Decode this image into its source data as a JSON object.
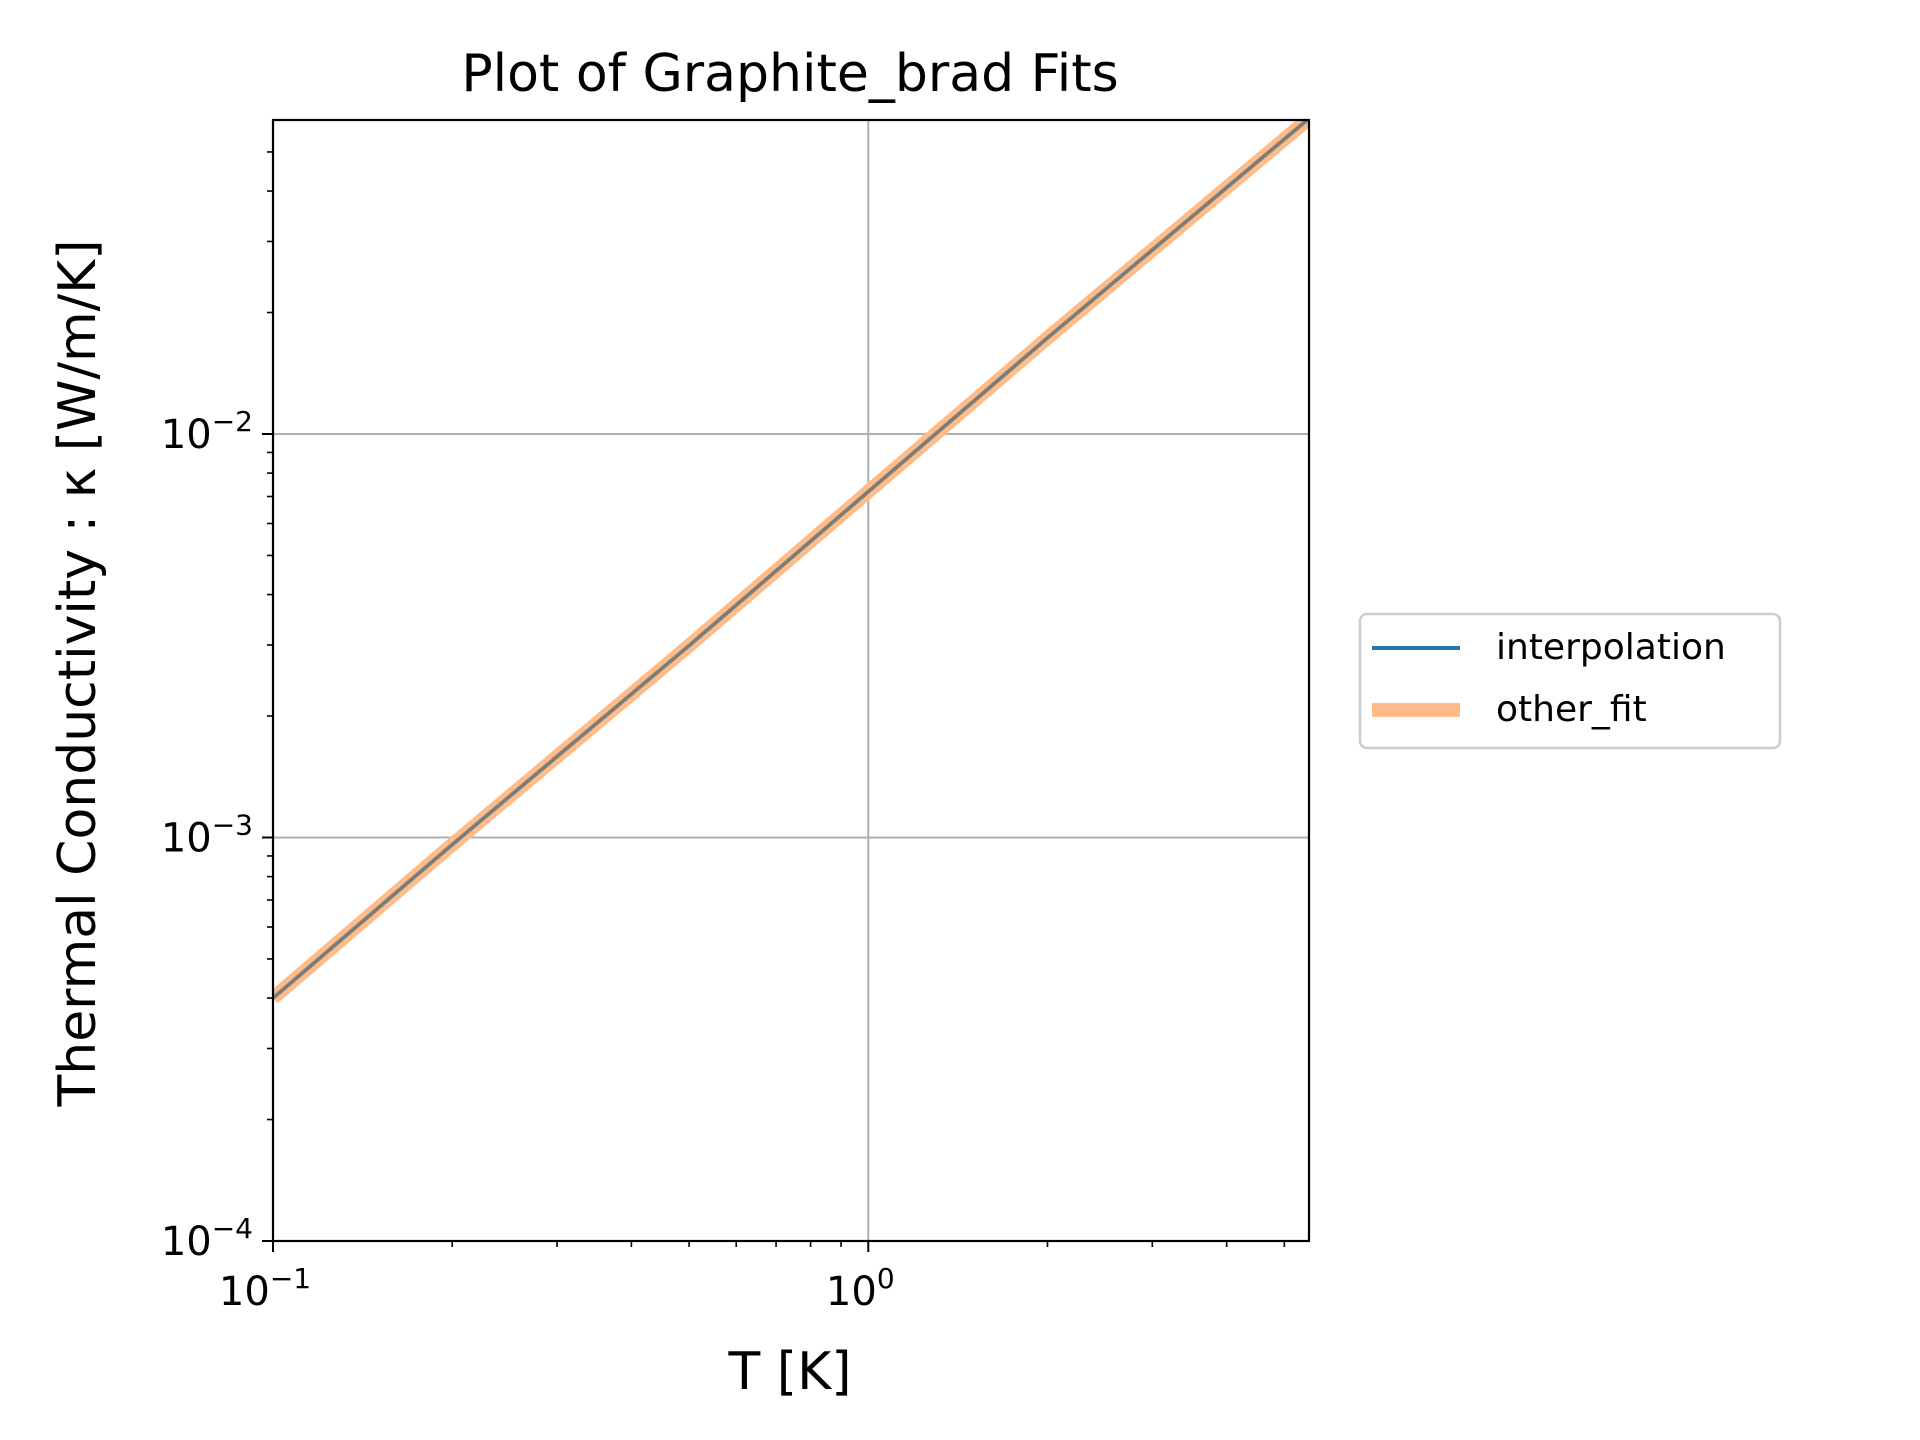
{
  "chart_data": {
    "type": "line",
    "title": "Plot of Graphite_brad Fits",
    "xlabel": "T [K]",
    "ylabel": "Thermal Conductivity : κ [W/m/K]",
    "xscale": "log",
    "yscale": "log",
    "xlim": [
      0.1,
      5.5
    ],
    "ylim": [
      0.0001,
      0.06
    ],
    "grid": true,
    "legend": {
      "placement": "right-outside"
    },
    "x_ticks": [
      {
        "value": 0.1,
        "base": "10",
        "exp": "−1"
      },
      {
        "value": 1,
        "base": "10",
        "exp": "0"
      }
    ],
    "y_ticks": [
      {
        "value": 0.0001,
        "base": "10",
        "exp": "−4"
      },
      {
        "value": 0.001,
        "base": "10",
        "exp": "−3"
      },
      {
        "value": 0.01,
        "base": "10",
        "exp": "−2"
      }
    ],
    "series": [
      {
        "name": "interpolation",
        "color": "#1f77b4",
        "x": [
          0.1,
          0.2,
          0.5,
          1.0,
          2.0,
          5.5
        ],
        "y": [
          0.0004,
          0.00096,
          0.00299,
          0.0072,
          0.0173,
          0.0605
        ]
      },
      {
        "name": "other_fit",
        "color": "#ffbb88",
        "x": [
          0.1,
          0.2,
          0.5,
          1.0,
          2.0,
          5.5
        ],
        "y": [
          0.0004,
          0.00096,
          0.00299,
          0.0072,
          0.0173,
          0.0605
        ]
      }
    ]
  }
}
